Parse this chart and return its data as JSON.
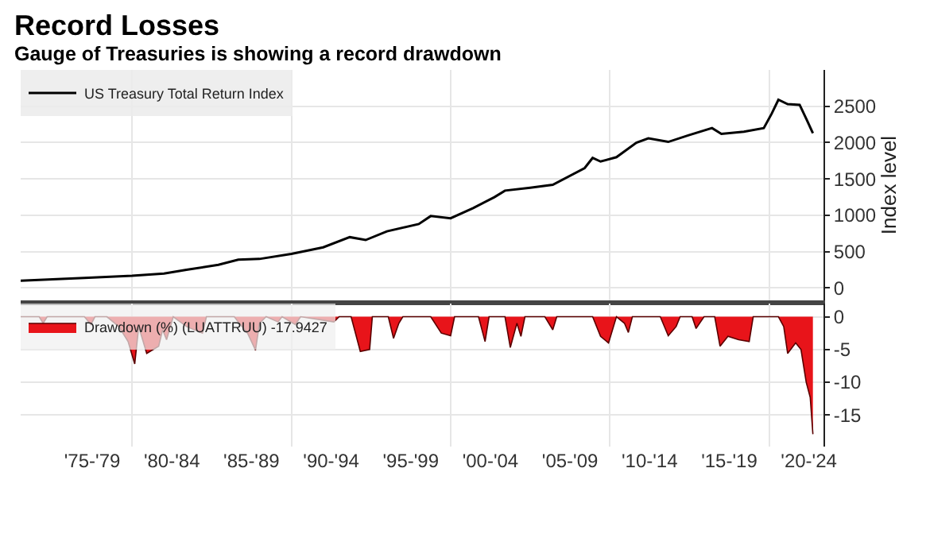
{
  "chart_data": [
    {
      "type": "line",
      "title": "Record Losses",
      "subtitle": "Gauge of Treasuries is showing a record drawdown",
      "ylabel": "Index level",
      "series": [
        {
          "name": "US Treasury Total Return Index",
          "color": "#000000",
          "x": [
            "1973-01",
            "1975-01",
            "1977-01",
            "1980-01",
            "1982-01",
            "1983-06",
            "1985-06",
            "1986-09",
            "1988-01",
            "1990-01",
            "1992-01",
            "1993-09",
            "1994-09",
            "1996-01",
            "1998-01",
            "1998-10",
            "2000-01",
            "2001-06",
            "2002-10",
            "2003-06",
            "2005-01",
            "2006-06",
            "2008-06",
            "2008-12",
            "2009-06",
            "2010-06",
            "2011-09",
            "2012-06",
            "2013-09",
            "2014-12",
            "2016-06",
            "2017-01",
            "2018-06",
            "2019-09",
            "2020-03",
            "2020-08",
            "2021-03",
            "2021-12",
            "2022-05",
            "2022-10"
          ],
          "values": [
            100,
            120,
            140,
            170,
            200,
            250,
            320,
            390,
            400,
            470,
            560,
            700,
            660,
            780,
            880,
            990,
            960,
            1100,
            1250,
            1340,
            1380,
            1420,
            1650,
            1790,
            1740,
            1800,
            2000,
            2060,
            2010,
            2100,
            2200,
            2120,
            2150,
            2200,
            2400,
            2590,
            2530,
            2520,
            2330,
            2130
          ]
        }
      ],
      "xlim": [
        "1973-01",
        "2023-06"
      ],
      "xticks": [
        {
          "value": "1980-01",
          "label": null
        },
        {
          "value": "1990-01",
          "label": null
        },
        {
          "value": "2000-01",
          "label": null
        },
        {
          "value": "2010-01",
          "label": null
        },
        {
          "value": "2020-01",
          "label": null
        }
      ],
      "ylim": [
        -170,
        3000
      ],
      "yticks": [
        0,
        500,
        1000,
        1500,
        2000,
        2500
      ],
      "tick_labels": "y",
      "grid": true,
      "legend": "top left",
      "line_style": "solid"
    },
    {
      "type": "area",
      "series": [
        {
          "name": "Drawdown (%) (LUATTRUU) -17.9427",
          "color": "#e8141a",
          "x": [
            "1973-01",
            "1974-03",
            "1974-06",
            "1974-09",
            "1977-01",
            "1977-06",
            "1977-09",
            "1978-06",
            "1979-03",
            "1979-10",
            "1980-03",
            "1980-06",
            "1980-12",
            "1981-09",
            "1981-12",
            "1982-03",
            "1982-08",
            "1983-06",
            "1984-06",
            "1984-09",
            "1986-06",
            "1986-09",
            "1987-04",
            "1987-10",
            "1988-01",
            "1988-06",
            "1989-03",
            "1989-06",
            "1990-04",
            "1990-08",
            "1992-09",
            "1993-01",
            "1993-10",
            "1994-05",
            "1994-12",
            "1995-02",
            "1996-02",
            "1996-06",
            "1996-10",
            "1997-01",
            "1998-10",
            "1999-06",
            "2000-01",
            "2000-04",
            "2001-10",
            "2002-03",
            "2002-06",
            "2003-06",
            "2003-10",
            "2004-03",
            "2004-06",
            "2004-09",
            "2005-12",
            "2006-06",
            "2006-09",
            "2008-12",
            "2009-06",
            "2009-12",
            "2010-06",
            "2010-12",
            "2011-03",
            "2011-06",
            "2013-03",
            "2013-09",
            "2014-03",
            "2014-06",
            "2015-03",
            "2015-06",
            "2015-12",
            "2016-08",
            "2016-12",
            "2017-06",
            "2018-02",
            "2018-10",
            "2019-01",
            "2020-08",
            "2020-12",
            "2021-03",
            "2021-09",
            "2022-01",
            "2022-05",
            "2022-08",
            "2022-10"
          ],
          "values": [
            0,
            0,
            -1.0,
            0,
            0,
            -1.2,
            0,
            0,
            -1.5,
            -3.8,
            -7.2,
            -1.5,
            -5.6,
            -4.5,
            -2.0,
            -3.5,
            0,
            -1.5,
            -2.5,
            0,
            0,
            -0.8,
            -2.5,
            -5.1,
            -1.0,
            0,
            -0.8,
            0,
            -1.2,
            0,
            -0.8,
            0,
            0,
            -5.3,
            -5.0,
            0,
            0,
            -3.3,
            -1.0,
            0,
            0,
            -2.5,
            -2.9,
            0,
            0,
            -3.8,
            0,
            0,
            -4.7,
            -1.0,
            -3.0,
            0,
            0,
            -2.0,
            0,
            0,
            -3.0,
            -4.0,
            0,
            -1.0,
            -2.4,
            0,
            0,
            -2.9,
            -1.5,
            0,
            0,
            -1.8,
            0,
            0,
            -4.5,
            -3.0,
            -3.5,
            -3.8,
            0,
            0,
            -1.5,
            -5.6,
            -4.0,
            -5.0,
            -10.0,
            -12.3,
            -17.9
          ]
        }
      ],
      "xlim": [
        "1973-01",
        "2023-06"
      ],
      "xticks": [
        {
          "value": "1977-07",
          "label": "'75-'79"
        },
        {
          "value": "1982-07",
          "label": "'80-'84"
        },
        {
          "value": "1987-07",
          "label": "'85-'89"
        },
        {
          "value": "1992-07",
          "label": "'90-'94"
        },
        {
          "value": "1997-07",
          "label": "'95-'99"
        },
        {
          "value": "2002-07",
          "label": "'00-'04"
        },
        {
          "value": "2007-07",
          "label": "'05-'09"
        },
        {
          "value": "2012-07",
          "label": "'10-'14"
        },
        {
          "value": "2017-07",
          "label": "'15-'19"
        },
        {
          "value": "2022-07",
          "label": "'20-'24"
        },
        {
          "value": "1980-01",
          "label": null
        },
        {
          "value": "1990-01",
          "label": null
        },
        {
          "value": "2000-01",
          "label": null
        },
        {
          "value": "2010-01",
          "label": null
        },
        {
          "value": "2020-01",
          "label": null
        }
      ],
      "ylim": [
        -19.8,
        2
      ],
      "yticks": [
        0,
        -5,
        -10,
        -15
      ],
      "grid": true,
      "legend": "top left"
    }
  ]
}
